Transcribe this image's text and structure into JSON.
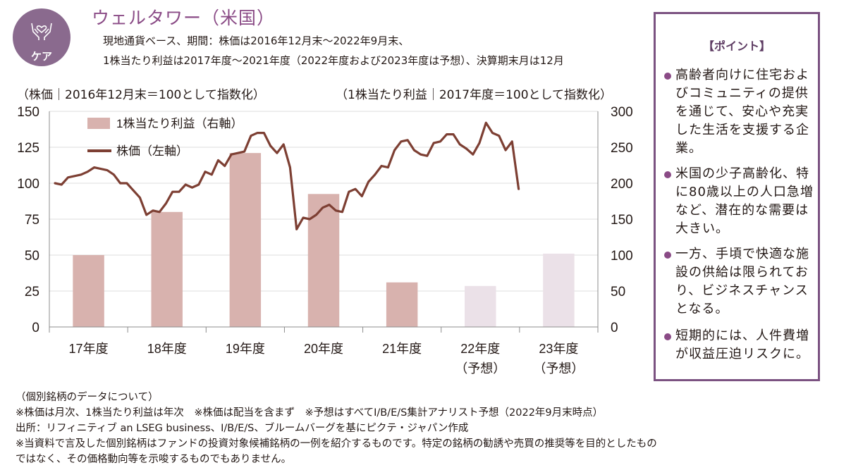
{
  "header": {
    "badge_label": "ケア",
    "badge_icon": "hands-heart-icon",
    "title": "ウェルタワー（米国）",
    "subtitle_line1": "現地通貨ベース、期間：株価は2016年12月末～2022年9月末、",
    "subtitle_line2": "1株当たり利益は2017年度～2021年度（2022年度および2023年度は予想）、決算期末月は12月"
  },
  "axis_captions": {
    "left": "（株価｜2016年12月末＝100として指数化）",
    "right": "（1株当たり利益｜2017年度＝100として指数化）"
  },
  "chart_data": {
    "type": "bar+line",
    "categories": [
      "17年度",
      "18年度",
      "19年度",
      "20年度",
      "21年度",
      "22年度",
      "23年度"
    ],
    "category_sublabels": [
      "",
      "",
      "",
      "",
      "",
      "（予想）",
      "（予想）"
    ],
    "legend": [
      "1株当たり利益（右軸）",
      "株価（左軸）"
    ],
    "legend_placement": "top-left",
    "grid": true,
    "left_axis": {
      "min": 0,
      "max": 150,
      "ticks": [
        0,
        25,
        50,
        75,
        100,
        125,
        150
      ]
    },
    "right_axis": {
      "min": 0,
      "max": 300,
      "ticks": [
        0,
        50,
        100,
        150,
        200,
        250,
        300
      ]
    },
    "eps_series": {
      "name": "1株当たり利益（右軸）",
      "axis": "right",
      "values": [
        100,
        160,
        242,
        185,
        62,
        57,
        102
      ],
      "forecast": [
        false,
        false,
        false,
        false,
        false,
        true,
        true
      ],
      "color": "#d8b2ae",
      "forecast_color": "#ebe1e8"
    },
    "price_series": {
      "name": "株価（左軸）",
      "axis": "left",
      "color": "#7d3f33",
      "start": "2016-12",
      "end": "2022-09",
      "frequency": "monthly",
      "values": [
        100,
        99,
        104,
        105,
        106,
        108,
        111,
        110,
        109,
        106,
        100,
        100,
        95,
        90,
        78,
        81,
        80,
        86,
        94,
        94,
        99,
        97,
        99,
        108,
        106,
        116,
        112,
        120,
        121,
        122,
        133,
        135,
        135,
        126,
        121,
        127,
        111,
        68,
        76,
        75,
        78,
        83,
        85,
        81,
        80,
        94,
        96,
        91,
        101,
        106,
        112,
        111,
        123,
        129,
        130,
        123,
        120,
        119,
        128,
        129,
        134,
        134,
        127,
        124,
        120,
        128,
        142,
        135,
        133,
        123,
        129,
        96
      ]
    }
  },
  "points_box": {
    "title": "【ポイント】",
    "bullets": [
      "高齢者向けに住宅およびコミュニティの提供を通じて、安心や充実した生活を支援する企業。",
      "米国の少子高齢化、特に80歳以上の人口急増など、潜在的な需要は大きい。",
      "一方、手頃で快適な施設の供給は限られており、ビジネスチャンスとなる。",
      "短期的には、人件費増が収益圧迫リスクに。"
    ]
  },
  "notes": [
    "（個別銘柄のデータについて）",
    "※株価は月次、1株当たり利益は年次　※株価は配当を含まず　※予想はすべてI/B/E/S集計アナリスト予想（2022年9月末時点）",
    "出所：リフィニティブ an LSEG business、I/B/E/S、ブルームバーグを基にピクテ・ジャパン作成",
    "※当資料で言及した個別銘柄はファンドの投資対象候補銘柄の一例を紹介するものです。特定の銘柄の勧誘や売買の推奨等を目的としたもの",
    "ではなく、その価格動向等を示唆するものでもありません。"
  ]
}
